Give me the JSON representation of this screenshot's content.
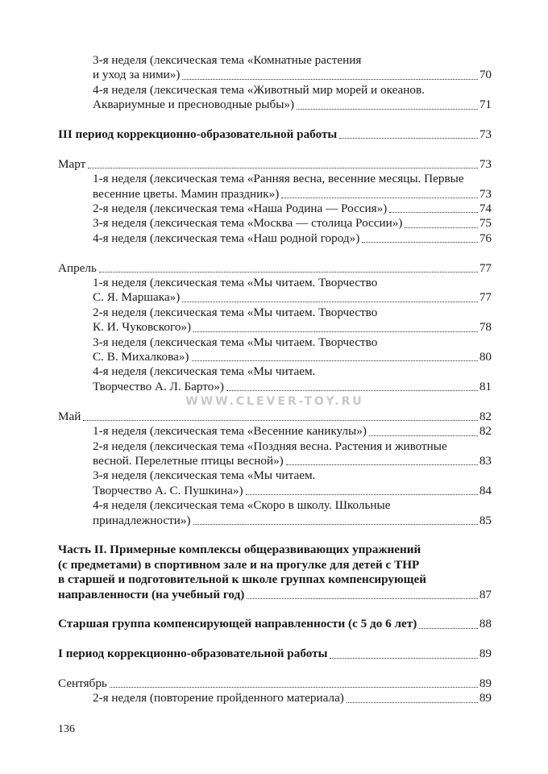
{
  "toc": [
    {
      "type": "week",
      "gap": false,
      "lines": [
        "3-я неделя (лексическая тема «Комнатные растения",
        "и уход за ними»)"
      ],
      "page": "70"
    },
    {
      "type": "week",
      "gap": false,
      "lines": [
        "4-я неделя (лексическая тема «Животный мир морей и океанов.",
        "Аквариумные и пресноводные рыбы»)"
      ],
      "page": "71"
    },
    {
      "type": "bold",
      "gap": true,
      "lines": [
        "III период коррекционно-образовательной работы"
      ],
      "page": "73"
    },
    {
      "type": "month",
      "gap": true,
      "lines": [
        "Март"
      ],
      "page": "73"
    },
    {
      "type": "week",
      "gap": false,
      "lines": [
        "1-я неделя (лексическая тема «Ранняя весна, весенние месяцы. Первые",
        "весенние цветы. Мамин праздник»)"
      ],
      "page": "73"
    },
    {
      "type": "week",
      "gap": false,
      "lines": [
        "2-я неделя (лексическая тема «Наша Родина — Россия»)"
      ],
      "page": "74"
    },
    {
      "type": "week",
      "gap": false,
      "lines": [
        "3-я неделя (лексическая тема «Москва — столица России»)"
      ],
      "page": "75"
    },
    {
      "type": "week",
      "gap": false,
      "lines": [
        "4-я неделя (лексическая тема «Наш родной город»)"
      ],
      "page": "76"
    },
    {
      "type": "month",
      "gap": true,
      "lines": [
        "Апрель"
      ],
      "page": "77"
    },
    {
      "type": "week",
      "gap": false,
      "lines": [
        "1-я неделя (лексическая тема «Мы читаем. Творчество",
        "С. Я. Маршака»)"
      ],
      "page": "77"
    },
    {
      "type": "week",
      "gap": false,
      "lines": [
        "2-я неделя (лексическая тема «Мы читаем. Творчество",
        "К. И. Чуковского»)"
      ],
      "page": "78"
    },
    {
      "type": "week",
      "gap": false,
      "lines": [
        "3-я неделя (лексическая тема «Мы читаем. Творчество",
        "С. В. Михалкова»)"
      ],
      "page": "80"
    },
    {
      "type": "week",
      "gap": false,
      "lines": [
        "4-я неделя (лексическая тема «Мы читаем.",
        "Творчество А. Л. Барто»)"
      ],
      "page": "81"
    },
    {
      "type": "month",
      "gap": true,
      "lines": [
        "Май"
      ],
      "page": "82"
    },
    {
      "type": "week",
      "gap": false,
      "lines": [
        "1-я неделя (лексическая тема «Весенние каникулы»)"
      ],
      "page": "82"
    },
    {
      "type": "week",
      "gap": false,
      "lines": [
        "2-я неделя (лексическая тема «Поздняя весна. Растения и животные",
        "весной. Перелетные птицы весной»)"
      ],
      "page": "83"
    },
    {
      "type": "week",
      "gap": false,
      "lines": [
        "3-я неделя (лексическая тема «Мы читаем.",
        "Творчество А. С. Пушкина»)"
      ],
      "page": "84"
    },
    {
      "type": "week",
      "gap": false,
      "lines": [
        "4-я неделя (лексическая тема «Скоро в школу. Школьные",
        "принадлежности»)"
      ],
      "page": "85"
    },
    {
      "type": "bold",
      "gap": true,
      "lines": [
        "Часть II. Примерные комплексы общеразвивающих упражнений",
        "(с предметами) в спортивном зале и на прогулке для детей с ТНР",
        "в старшей и подготовительной к школе группах компенсирующей",
        "направленности (на учебный год)"
      ],
      "page": "87"
    },
    {
      "type": "bold",
      "gap": true,
      "lines": [
        "Старшая группа компенсирующей направленности (с 5 до 6 лет)"
      ],
      "page": "88"
    },
    {
      "type": "bold",
      "gap": true,
      "lines": [
        "I период коррекционно-образовательной работы"
      ],
      "page": "89"
    },
    {
      "type": "month",
      "gap": true,
      "lines": [
        "Сентябрь"
      ],
      "page": "89"
    },
    {
      "type": "week",
      "gap": false,
      "lines": [
        "2-я неделя (повторение пройденного материала)"
      ],
      "page": "89"
    }
  ],
  "page_number": "136",
  "watermark": "WWW.CLEVER-TOY.RU"
}
